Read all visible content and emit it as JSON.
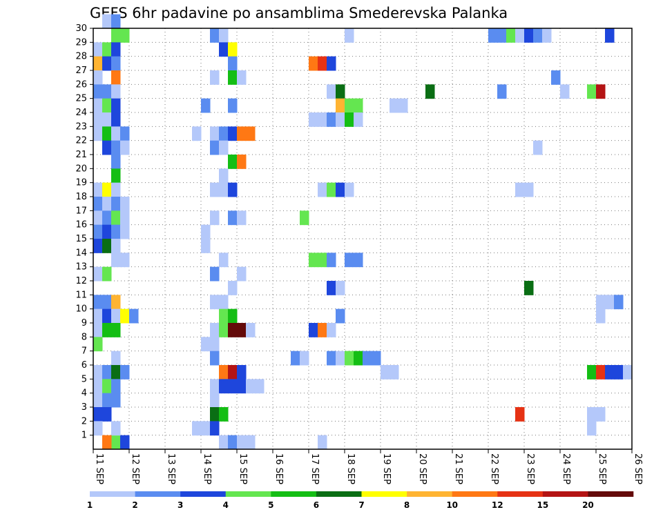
{
  "chart_data": {
    "type": "heatmap",
    "title": "GEFS 6hr padavine po ansamblima Smederevska Palanka",
    "xlabel": "",
    "ylabel": "",
    "x_range": [
      0,
      15
    ],
    "y_range": [
      0,
      30
    ],
    "x_ticks": [
      "11 SEP",
      "12 SEP",
      "13 SEP",
      "14 SEP",
      "15 SEP",
      "16 SEP",
      "17 SEP",
      "18 SEP",
      "19 SEP",
      "20 SEP",
      "21 SEP",
      "22 SEP",
      "23 SEP",
      "24 SEP",
      "25 SEP",
      "26 SEP"
    ],
    "y_ticks": [
      1,
      2,
      3,
      4,
      5,
      6,
      7,
      8,
      9,
      10,
      11,
      12,
      13,
      14,
      15,
      16,
      17,
      18,
      19,
      20,
      21,
      22,
      23,
      24,
      25,
      26,
      27,
      28,
      29,
      30
    ],
    "grid": true,
    "time_step_hours": 6,
    "legend": {
      "position": "bottom",
      "labels": [
        "1",
        "2",
        "3",
        "4",
        "5",
        "6",
        "7",
        "8",
        "10",
        "12",
        "15",
        "20"
      ],
      "colors": [
        "#b4c8fa",
        "#5a8cf0",
        "#1e46dc",
        "#64e650",
        "#14be14",
        "#0a6e14",
        "#ffff00",
        "#ffb432",
        "#ff7814",
        "#e63214",
        "#b41414",
        "#640a0a"
      ]
    },
    "cells": [
      {
        "day": 0.5,
        "member": 0,
        "v": 4
      },
      {
        "day": 0.75,
        "member": 0,
        "v": 3
      },
      {
        "day": 0.25,
        "member": 30,
        "v": 1
      },
      {
        "day": 0.5,
        "member": 30,
        "v": 2
      },
      {
        "day": 0.5,
        "member": 29,
        "v": 4
      },
      {
        "day": 0.75,
        "member": 29,
        "v": 4
      },
      {
        "day": 0,
        "member": 28,
        "v": 1
      },
      {
        "day": 0.25,
        "member": 28,
        "v": 4
      },
      {
        "day": 0.5,
        "member": 28,
        "v": 3
      },
      {
        "day": 0,
        "member": 27,
        "v": 8
      },
      {
        "day": 0.25,
        "member": 27,
        "v": 3
      },
      {
        "day": 0.5,
        "member": 27,
        "v": 2
      },
      {
        "day": 0,
        "member": 26,
        "v": 1
      },
      {
        "day": 0.5,
        "member": 26,
        "v": 10
      },
      {
        "day": 0,
        "member": 25,
        "v": 2
      },
      {
        "day": 0.25,
        "member": 25,
        "v": 2
      },
      {
        "day": 0.5,
        "member": 25,
        "v": 1
      },
      {
        "day": 0,
        "member": 24,
        "v": 1
      },
      {
        "day": 0.25,
        "member": 24,
        "v": 4
      },
      {
        "day": 0.5,
        "member": 24,
        "v": 3
      },
      {
        "day": 0,
        "member": 23,
        "v": 1
      },
      {
        "day": 0.25,
        "member": 23,
        "v": 1
      },
      {
        "day": 0.5,
        "member": 23,
        "v": 3
      },
      {
        "day": 0,
        "member": 22,
        "v": 1
      },
      {
        "day": 0.25,
        "member": 22,
        "v": 5
      },
      {
        "day": 0.5,
        "member": 22,
        "v": 1
      },
      {
        "day": 0.75,
        "member": 22,
        "v": 2
      },
      {
        "day": 0.25,
        "member": 21,
        "v": 3
      },
      {
        "day": 0.5,
        "member": 21,
        "v": 2
      },
      {
        "day": 0.75,
        "member": 21,
        "v": 1
      },
      {
        "day": 0.5,
        "member": 20,
        "v": 2
      },
      {
        "day": 0.5,
        "member": 19,
        "v": 5
      },
      {
        "day": 0,
        "member": 18,
        "v": 1
      },
      {
        "day": 0.25,
        "member": 18,
        "v": 7
      },
      {
        "day": 0.5,
        "member": 18,
        "v": 1
      },
      {
        "day": 0,
        "member": 17,
        "v": 2
      },
      {
        "day": 0.25,
        "member": 17,
        "v": 1
      },
      {
        "day": 0.5,
        "member": 17,
        "v": 2
      },
      {
        "day": 0.75,
        "member": 17,
        "v": 1
      },
      {
        "day": 0,
        "member": 16,
        "v": 1
      },
      {
        "day": 0.25,
        "member": 16,
        "v": 2
      },
      {
        "day": 0.5,
        "member": 16,
        "v": 4
      },
      {
        "day": 0.75,
        "member": 16,
        "v": 1
      },
      {
        "day": 0,
        "member": 15,
        "v": 2
      },
      {
        "day": 0.25,
        "member": 15,
        "v": 3
      },
      {
        "day": 0.5,
        "member": 15,
        "v": 2
      },
      {
        "day": 0.75,
        "member": 15,
        "v": 1
      },
      {
        "day": 0,
        "member": 14,
        "v": 3
      },
      {
        "day": 0.25,
        "member": 14,
        "v": 6
      },
      {
        "day": 0.5,
        "member": 14,
        "v": 1
      },
      {
        "day": 0.5,
        "member": 13,
        "v": 1
      },
      {
        "day": 0.75,
        "member": 13,
        "v": 1
      },
      {
        "day": 0,
        "member": 12,
        "v": 1
      },
      {
        "day": 0.25,
        "member": 12,
        "v": 4
      },
      {
        "day": 0,
        "member": 10,
        "v": 2
      },
      {
        "day": 0.25,
        "member": 10,
        "v": 2
      },
      {
        "day": 0.5,
        "member": 10,
        "v": 8
      },
      {
        "day": 0,
        "member": 9,
        "v": 1
      },
      {
        "day": 0.25,
        "member": 9,
        "v": 3
      },
      {
        "day": 0.5,
        "member": 9,
        "v": 1
      },
      {
        "day": 0.75,
        "member": 9,
        "v": 7
      },
      {
        "day": 1,
        "member": 9,
        "v": 2
      },
      {
        "day": 0,
        "member": 8,
        "v": 1
      },
      {
        "day": 0.25,
        "member": 8,
        "v": 5
      },
      {
        "day": 0.5,
        "member": 8,
        "v": 5
      },
      {
        "day": 0,
        "member": 7,
        "v": 4
      },
      {
        "day": 0.5,
        "member": 6,
        "v": 1
      },
      {
        "day": 0,
        "member": 5,
        "v": 1
      },
      {
        "day": 0.25,
        "member": 5,
        "v": 2
      },
      {
        "day": 0.5,
        "member": 5,
        "v": 6
      },
      {
        "day": 0.75,
        "member": 5,
        "v": 2
      },
      {
        "day": 0,
        "member": 4,
        "v": 1
      },
      {
        "day": 0.25,
        "member": 4,
        "v": 4
      },
      {
        "day": 0.5,
        "member": 4,
        "v": 2
      },
      {
        "day": 0,
        "member": 3,
        "v": 1
      },
      {
        "day": 0.25,
        "member": 3,
        "v": 2
      },
      {
        "day": 0.5,
        "member": 3,
        "v": 2
      },
      {
        "day": 0,
        "member": 2,
        "v": 3
      },
      {
        "day": 0.25,
        "member": 2,
        "v": 3
      },
      {
        "day": 0,
        "member": 1,
        "v": 1
      },
      {
        "day": 0.5,
        "member": 1,
        "v": 1
      },
      {
        "day": 0.25,
        "member": 0,
        "v": 10
      },
      {
        "day": 3.25,
        "member": 29,
        "v": 2
      },
      {
        "day": 3.5,
        "member": 29,
        "v": 1
      },
      {
        "day": 3.5,
        "member": 28,
        "v": 3
      },
      {
        "day": 3.75,
        "member": 28,
        "v": 7
      },
      {
        "day": 3.75,
        "member": 27,
        "v": 2
      },
      {
        "day": 3.25,
        "member": 26,
        "v": 1
      },
      {
        "day": 3.75,
        "member": 26,
        "v": 5
      },
      {
        "day": 4,
        "member": 26,
        "v": 1
      },
      {
        "day": 3,
        "member": 24,
        "v": 2
      },
      {
        "day": 3.75,
        "member": 24,
        "v": 2
      },
      {
        "day": 2.75,
        "member": 22,
        "v": 1
      },
      {
        "day": 3.25,
        "member": 22,
        "v": 1
      },
      {
        "day": 3.5,
        "member": 22,
        "v": 2
      },
      {
        "day": 3.75,
        "member": 22,
        "v": 3
      },
      {
        "day": 4,
        "member": 22,
        "v": 10
      },
      {
        "day": 4.25,
        "member": 22,
        "v": 10
      },
      {
        "day": 3.25,
        "member": 21,
        "v": 2
      },
      {
        "day": 3.5,
        "member": 21,
        "v": 1
      },
      {
        "day": 3.75,
        "member": 20,
        "v": 5
      },
      {
        "day": 4,
        "member": 20,
        "v": 10
      },
      {
        "day": 3.5,
        "member": 19,
        "v": 1
      },
      {
        "day": 3.25,
        "member": 18,
        "v": 1
      },
      {
        "day": 3.5,
        "member": 18,
        "v": 1
      },
      {
        "day": 3.75,
        "member": 18,
        "v": 3
      },
      {
        "day": 3.25,
        "member": 16,
        "v": 1
      },
      {
        "day": 3.75,
        "member": 16,
        "v": 2
      },
      {
        "day": 4,
        "member": 16,
        "v": 1
      },
      {
        "day": 3,
        "member": 15,
        "v": 1
      },
      {
        "day": 3,
        "member": 14,
        "v": 1
      },
      {
        "day": 3.5,
        "member": 13,
        "v": 1
      },
      {
        "day": 3.25,
        "member": 12,
        "v": 2
      },
      {
        "day": 4,
        "member": 12,
        "v": 1
      },
      {
        "day": 3.75,
        "member": 11,
        "v": 1
      },
      {
        "day": 3.25,
        "member": 10,
        "v": 1
      },
      {
        "day": 3.5,
        "member": 10,
        "v": 1
      },
      {
        "day": 3.5,
        "member": 9,
        "v": 4
      },
      {
        "day": 3.75,
        "member": 9,
        "v": 5
      },
      {
        "day": 3.25,
        "member": 8,
        "v": 1
      },
      {
        "day": 3.5,
        "member": 8,
        "v": 4
      },
      {
        "day": 3.75,
        "member": 8,
        "v": 20
      },
      {
        "day": 4,
        "member": 8,
        "v": 20
      },
      {
        "day": 4.25,
        "member": 8,
        "v": 1
      },
      {
        "day": 3,
        "member": 7,
        "v": 1
      },
      {
        "day": 3.25,
        "member": 7,
        "v": 1
      },
      {
        "day": 3.25,
        "member": 6,
        "v": 2
      },
      {
        "day": 3.5,
        "member": 5,
        "v": 10
      },
      {
        "day": 3.75,
        "member": 5,
        "v": 15
      },
      {
        "day": 4,
        "member": 5,
        "v": 3
      },
      {
        "day": 3.25,
        "member": 4,
        "v": 1
      },
      {
        "day": 3.5,
        "member": 4,
        "v": 3
      },
      {
        "day": 3.75,
        "member": 4,
        "v": 3
      },
      {
        "day": 4,
        "member": 4,
        "v": 3
      },
      {
        "day": 4.25,
        "member": 4,
        "v": 1
      },
      {
        "day": 4.5,
        "member": 4,
        "v": 1
      },
      {
        "day": 3.25,
        "member": 3,
        "v": 1
      },
      {
        "day": 3.25,
        "member": 2,
        "v": 6
      },
      {
        "day": 3.5,
        "member": 2,
        "v": 5
      },
      {
        "day": 2.75,
        "member": 1,
        "v": 1
      },
      {
        "day": 3,
        "member": 1,
        "v": 1
      },
      {
        "day": 3.25,
        "member": 1,
        "v": 3
      },
      {
        "day": 3.5,
        "member": 0,
        "v": 1
      },
      {
        "day": 3.75,
        "member": 0,
        "v": 2
      },
      {
        "day": 4,
        "member": 0,
        "v": 1
      },
      {
        "day": 4.25,
        "member": 0,
        "v": 1
      },
      {
        "day": 7,
        "member": 29,
        "v": 1
      },
      {
        "day": 6,
        "member": 27,
        "v": 10
      },
      {
        "day": 6.25,
        "member": 27,
        "v": 12
      },
      {
        "day": 6.5,
        "member": 27,
        "v": 3
      },
      {
        "day": 6.5,
        "member": 25,
        "v": 1
      },
      {
        "day": 6.75,
        "member": 25,
        "v": 6
      },
      {
        "day": 6.75,
        "member": 24,
        "v": 8
      },
      {
        "day": 7,
        "member": 24,
        "v": 4
      },
      {
        "day": 7.25,
        "member": 24,
        "v": 4
      },
      {
        "day": 8.25,
        "member": 24,
        "v": 1
      },
      {
        "day": 8.5,
        "member": 24,
        "v": 1
      },
      {
        "day": 6,
        "member": 23,
        "v": 1
      },
      {
        "day": 6.25,
        "member": 23,
        "v": 1
      },
      {
        "day": 6.5,
        "member": 23,
        "v": 2
      },
      {
        "day": 6.75,
        "member": 23,
        "v": 1
      },
      {
        "day": 7,
        "member": 23,
        "v": 5
      },
      {
        "day": 7.25,
        "member": 23,
        "v": 1
      },
      {
        "day": 6.25,
        "member": 18,
        "v": 1
      },
      {
        "day": 6.5,
        "member": 18,
        "v": 4
      },
      {
        "day": 6.75,
        "member": 18,
        "v": 3
      },
      {
        "day": 7,
        "member": 18,
        "v": 1
      },
      {
        "day": 5.75,
        "member": 16,
        "v": 4
      },
      {
        "day": 6,
        "member": 13,
        "v": 4
      },
      {
        "day": 6.25,
        "member": 13,
        "v": 4
      },
      {
        "day": 6.5,
        "member": 13,
        "v": 2
      },
      {
        "day": 7,
        "member": 13,
        "v": 2
      },
      {
        "day": 7.25,
        "member": 13,
        "v": 2
      },
      {
        "day": 6.5,
        "member": 11,
        "v": 3
      },
      {
        "day": 6.75,
        "member": 11,
        "v": 1
      },
      {
        "day": 6.75,
        "member": 9,
        "v": 2
      },
      {
        "day": 6,
        "member": 8,
        "v": 3
      },
      {
        "day": 6.25,
        "member": 8,
        "v": 10
      },
      {
        "day": 6.5,
        "member": 8,
        "v": 1
      },
      {
        "day": 5.5,
        "member": 6,
        "v": 2
      },
      {
        "day": 5.75,
        "member": 6,
        "v": 1
      },
      {
        "day": 6.5,
        "member": 6,
        "v": 2
      },
      {
        "day": 6.75,
        "member": 6,
        "v": 1
      },
      {
        "day": 7,
        "member": 6,
        "v": 4
      },
      {
        "day": 7.25,
        "member": 6,
        "v": 5
      },
      {
        "day": 7.5,
        "member": 6,
        "v": 2
      },
      {
        "day": 7.75,
        "member": 6,
        "v": 2
      },
      {
        "day": 8,
        "member": 5,
        "v": 1
      },
      {
        "day": 8.25,
        "member": 5,
        "v": 1
      },
      {
        "day": 6.25,
        "member": 0,
        "v": 1
      },
      {
        "day": 9.25,
        "member": 25,
        "v": 6
      },
      {
        "day": 11,
        "member": 29,
        "v": 2
      },
      {
        "day": 11.25,
        "member": 29,
        "v": 2
      },
      {
        "day": 11.5,
        "member": 29,
        "v": 4
      },
      {
        "day": 11.75,
        "member": 29,
        "v": 1
      },
      {
        "day": 12,
        "member": 29,
        "v": 3
      },
      {
        "day": 12.25,
        "member": 29,
        "v": 2
      },
      {
        "day": 12.5,
        "member": 29,
        "v": 1
      },
      {
        "day": 14.25,
        "member": 29,
        "v": 3
      },
      {
        "day": 12.75,
        "member": 26,
        "v": 2
      },
      {
        "day": 11.25,
        "member": 25,
        "v": 2
      },
      {
        "day": 13,
        "member": 25,
        "v": 1
      },
      {
        "day": 13.75,
        "member": 25,
        "v": 4
      },
      {
        "day": 14,
        "member": 25,
        "v": 15
      },
      {
        "day": 12.25,
        "member": 21,
        "v": 1
      },
      {
        "day": 11.75,
        "member": 18,
        "v": 1
      },
      {
        "day": 12,
        "member": 18,
        "v": 1
      },
      {
        "day": 12,
        "member": 11,
        "v": 6
      },
      {
        "day": 14,
        "member": 10,
        "v": 1
      },
      {
        "day": 14.25,
        "member": 10,
        "v": 1
      },
      {
        "day": 14.5,
        "member": 10,
        "v": 2
      },
      {
        "day": 14,
        "member": 9,
        "v": 1
      },
      {
        "day": 13.75,
        "member": 5,
        "v": 5
      },
      {
        "day": 14,
        "member": 5,
        "v": 12
      },
      {
        "day": 14.25,
        "member": 5,
        "v": 3
      },
      {
        "day": 14.5,
        "member": 5,
        "v": 3
      },
      {
        "day": 14.75,
        "member": 5,
        "v": 1
      },
      {
        "day": 11.75,
        "member": 2,
        "v": 12
      },
      {
        "day": 13.75,
        "member": 2,
        "v": 1
      },
      {
        "day": 14,
        "member": 2,
        "v": 1
      },
      {
        "day": 13.75,
        "member": 1,
        "v": 1
      }
    ]
  }
}
